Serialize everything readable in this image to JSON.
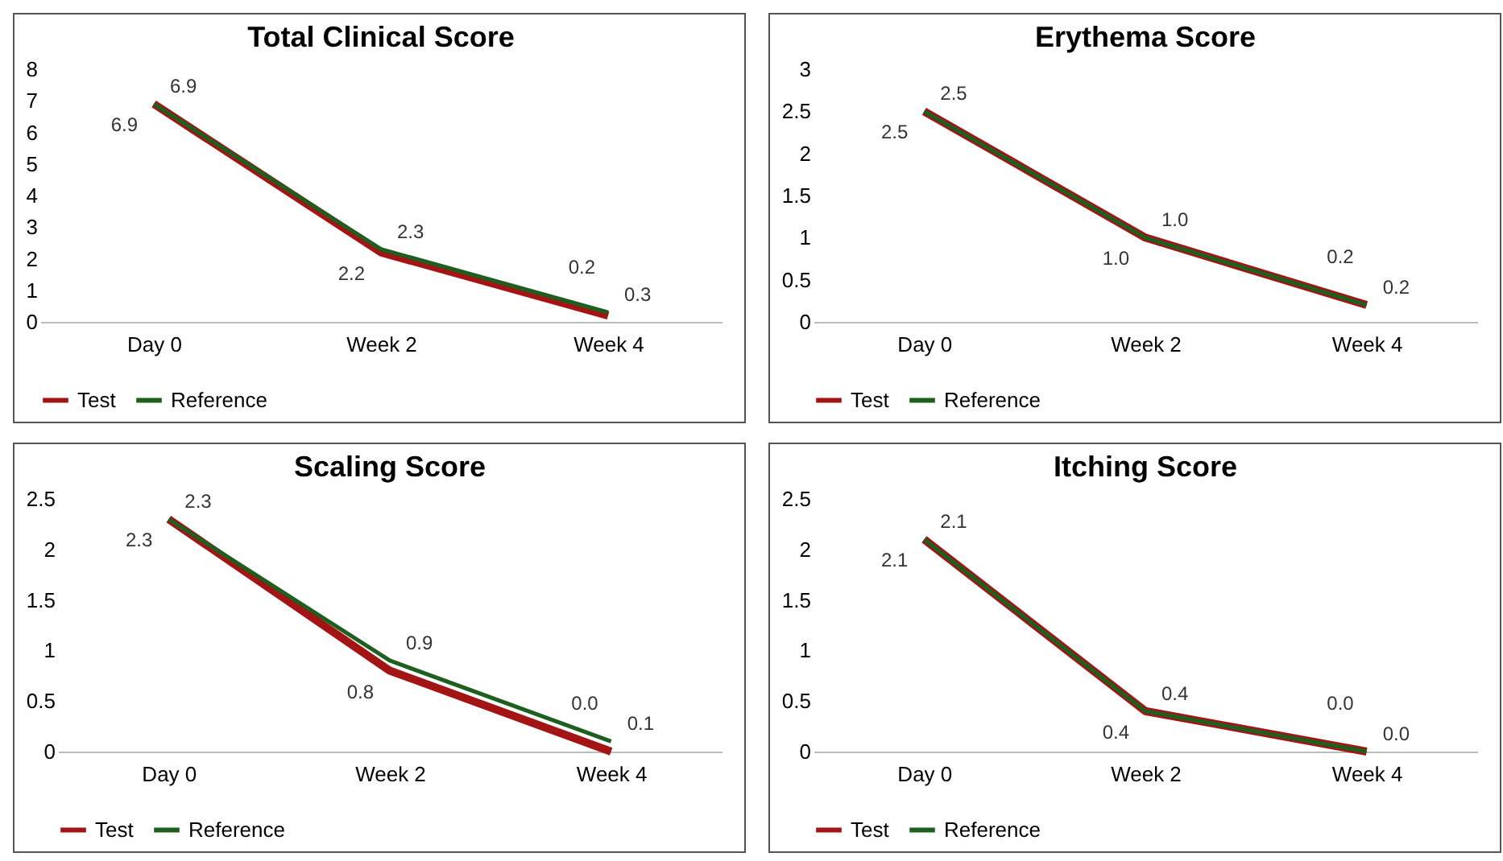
{
  "chart_data": [
    {
      "type": "line",
      "title": "Total Clinical Score",
      "categories": [
        "Day 0",
        "Week 2",
        "Week 4"
      ],
      "ylim": [
        0,
        8
      ],
      "yticks": [
        0,
        1,
        2,
        3,
        4,
        5,
        6,
        7,
        8
      ],
      "grid": false,
      "legend": "bottom",
      "series": [
        {
          "name": "Test",
          "color": "#a31515",
          "values": [
            6.9,
            2.2,
            0.2
          ],
          "value_labels": [
            "6.9",
            "2.2",
            "0.2"
          ]
        },
        {
          "name": "Reference",
          "color": "#1e5e1e",
          "values": [
            6.9,
            2.3,
            0.3
          ],
          "value_labels": [
            "6.9",
            "2.3",
            "0.3"
          ]
        }
      ]
    },
    {
      "type": "line",
      "title": "Erythema Score",
      "categories": [
        "Day 0",
        "Week 2",
        "Week 4"
      ],
      "ylim": [
        0,
        3
      ],
      "yticks": [
        0,
        0.5,
        1,
        1.5,
        2,
        2.5,
        3
      ],
      "grid": false,
      "legend": "bottom",
      "series": [
        {
          "name": "Test",
          "color": "#a31515",
          "values": [
            2.5,
            1.0,
            0.2
          ],
          "value_labels": [
            "2.5",
            "1.0",
            "0.2"
          ]
        },
        {
          "name": "Reference",
          "color": "#1e5e1e",
          "values": [
            2.5,
            1.0,
            0.2
          ],
          "value_labels": [
            "2.5",
            "1.0",
            "0.2"
          ]
        }
      ]
    },
    {
      "type": "line",
      "title": "Scaling Score",
      "categories": [
        "Day 0",
        "Week 2",
        "Week 4"
      ],
      "ylim": [
        0,
        2.5
      ],
      "yticks": [
        0,
        0.5,
        1,
        1.5,
        2,
        2.5
      ],
      "grid": false,
      "legend": "bottom",
      "series": [
        {
          "name": "Test",
          "color": "#a31515",
          "values": [
            2.3,
            0.8,
            0.0
          ],
          "value_labels": [
            "2.3",
            "0.8",
            "0.0"
          ]
        },
        {
          "name": "Reference",
          "color": "#1e5e1e",
          "values": [
            2.3,
            0.9,
            0.1
          ],
          "value_labels": [
            "2.3",
            "0.9",
            "0.1"
          ]
        }
      ]
    },
    {
      "type": "line",
      "title": "Itching Score",
      "categories": [
        "Day 0",
        "Week 2",
        "Week 4"
      ],
      "ylim": [
        0,
        2.5
      ],
      "yticks": [
        0,
        0.5,
        1,
        1.5,
        2,
        2.5
      ],
      "grid": false,
      "legend": "bottom",
      "series": [
        {
          "name": "Test",
          "color": "#a31515",
          "values": [
            2.1,
            0.4,
            0.0
          ],
          "value_labels": [
            "2.1",
            "0.4",
            "0.0"
          ]
        },
        {
          "name": "Reference",
          "color": "#1e5e1e",
          "values": [
            2.1,
            0.4,
            0.0
          ],
          "value_labels": [
            "2.1",
            "0.4",
            "0.0"
          ]
        }
      ]
    }
  ]
}
